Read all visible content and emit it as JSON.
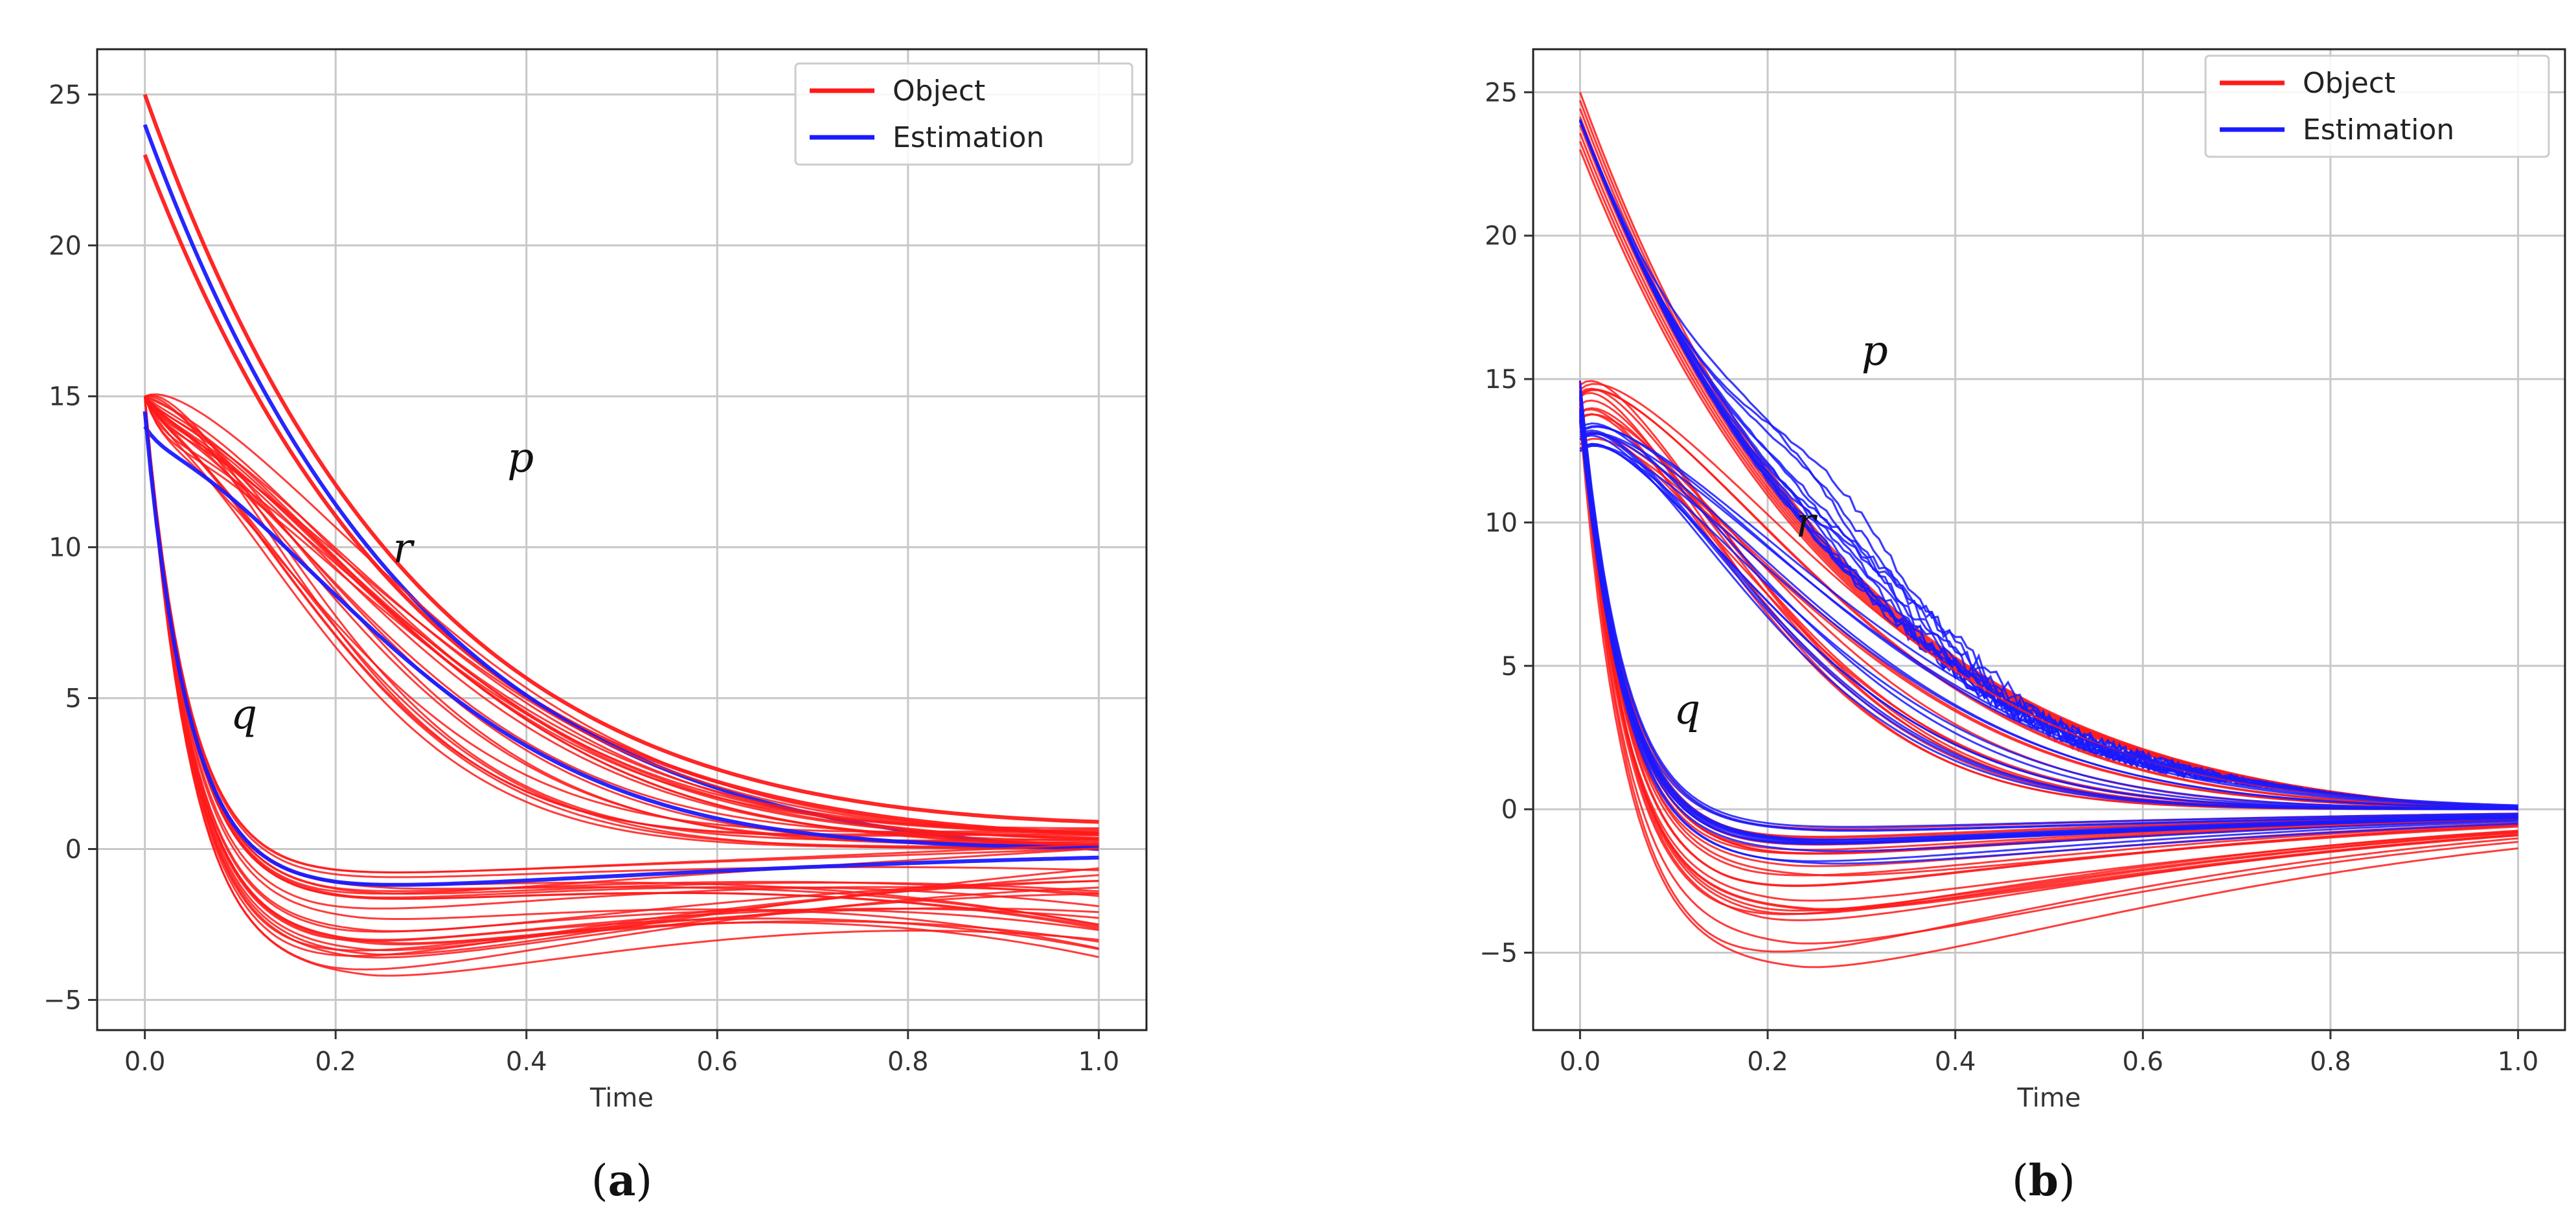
{
  "chart_data": [
    {
      "id": "a",
      "type": "line",
      "caption": {
        "open": "(",
        "letter": "a",
        "close": ")"
      },
      "xlabel": "Time",
      "ylabel": "",
      "xlim": [
        -0.05,
        1.05
      ],
      "ylim": [
        -6,
        26.5
      ],
      "xticks": [
        0.0,
        0.2,
        0.4,
        0.6,
        0.8,
        1.0
      ],
      "xtick_labels": [
        "0.0",
        "0.2",
        "0.4",
        "0.6",
        "0.8",
        "1.0"
      ],
      "yticks": [
        -5,
        0,
        5,
        10,
        15,
        20,
        25
      ],
      "ytick_labels": [
        "−5",
        "0",
        "5",
        "10",
        "15",
        "20",
        "25"
      ],
      "grid": true,
      "legend": {
        "position": "top-right",
        "entries": [
          {
            "label": "Object",
            "color": "#ff1a1a"
          },
          {
            "label": "Estimation",
            "color": "#1a1aff"
          }
        ]
      },
      "annotations": [
        {
          "text": "p",
          "x": 0.38,
          "y": 12.5
        },
        {
          "text": "r",
          "x": 0.26,
          "y": 9.5
        },
        {
          "text": "q",
          "x": 0.09,
          "y": 4.0
        }
      ],
      "series": [
        {
          "name": "Object p (upper)",
          "color": "#ff1a1a",
          "kind": "p",
          "x0": 25.0,
          "end": 0.9
        },
        {
          "name": "Object p (lower)",
          "color": "#ff1a1a",
          "kind": "p",
          "x0": 23.0,
          "end": 0.5
        },
        {
          "name": "Estimation p",
          "color": "#1a1aff",
          "kind": "p",
          "x0": 24.0,
          "end": 0.0
        },
        {
          "name": "Object r bundle",
          "color": "#ff1a1a",
          "kind": "r",
          "x0": 15.0,
          "peak_min": 13.2,
          "peak_max": 15.3,
          "end_min": 0.0,
          "end_max": 0.7,
          "count": 22
        },
        {
          "name": "Estimation r",
          "color": "#1a1aff",
          "kind": "r",
          "x0": 14.0,
          "peak": 13.3,
          "end": 0.0
        },
        {
          "name": "Object q bundle",
          "color": "#ff1a1a",
          "kind": "q",
          "x0": 15.0,
          "min_min": -4.5,
          "min_max": -0.9,
          "end_min": -3.0,
          "end_max": 0.5,
          "count": 26
        },
        {
          "name": "Estimation q",
          "color": "#1a1aff",
          "kind": "q",
          "x0": 14.5,
          "min": -1.3,
          "end": 0.0
        }
      ]
    },
    {
      "id": "b",
      "type": "line",
      "caption": {
        "open": "(",
        "letter": "b",
        "close": ")"
      },
      "xlabel": "Time",
      "ylabel": "",
      "xlim": [
        -0.05,
        1.05
      ],
      "ylim": [
        -7.7,
        26.5
      ],
      "xticks": [
        0.0,
        0.2,
        0.4,
        0.6,
        0.8,
        1.0
      ],
      "xtick_labels": [
        "0.0",
        "0.2",
        "0.4",
        "0.6",
        "0.8",
        "1.0"
      ],
      "yticks": [
        -5,
        0,
        5,
        10,
        15,
        20,
        25
      ],
      "ytick_labels": [
        "−5",
        "0",
        "5",
        "10",
        "15",
        "20",
        "25"
      ],
      "grid": true,
      "legend": {
        "position": "top-right",
        "entries": [
          {
            "label": "Object",
            "color": "#ff1a1a"
          },
          {
            "label": "Estimation",
            "color": "#1a1aff"
          }
        ]
      },
      "annotations": [
        {
          "text": "p",
          "x": 0.3,
          "y": 15.5
        },
        {
          "text": "r",
          "x": 0.23,
          "y": 9.5
        },
        {
          "text": "q",
          "x": 0.1,
          "y": 3.0
        }
      ],
      "series": [
        {
          "name": "Object p bundle",
          "color": "#ff1a1a",
          "kind": "p",
          "x0_min": 23.0,
          "x0_max": 25.0,
          "end": 0.0,
          "count": 8
        },
        {
          "name": "Estimation p bundle",
          "color": "#1a1aff",
          "kind": "p",
          "x0": 24.0,
          "bulge_max": 3.0,
          "end": 0.0,
          "count": 14
        },
        {
          "name": "Object r bundle",
          "color": "#ff1a1a",
          "kind": "r",
          "peak_min": 13.2,
          "peak_max": 15.3,
          "end": 0.0,
          "count": 14
        },
        {
          "name": "Estimation r bundle",
          "color": "#1a1aff",
          "kind": "r",
          "peak": 13.3,
          "end": 0.0,
          "count": 12
        },
        {
          "name": "Object q bundle",
          "color": "#ff1a1a",
          "kind": "q",
          "min_min": -6.0,
          "min_max": -0.8,
          "end": 0.0,
          "count": 24
        },
        {
          "name": "Estimation q bundle",
          "color": "#1a1aff",
          "kind": "q",
          "min_min": -2.0,
          "min_max": -0.6,
          "end": 0.0,
          "count": 14
        }
      ]
    }
  ]
}
